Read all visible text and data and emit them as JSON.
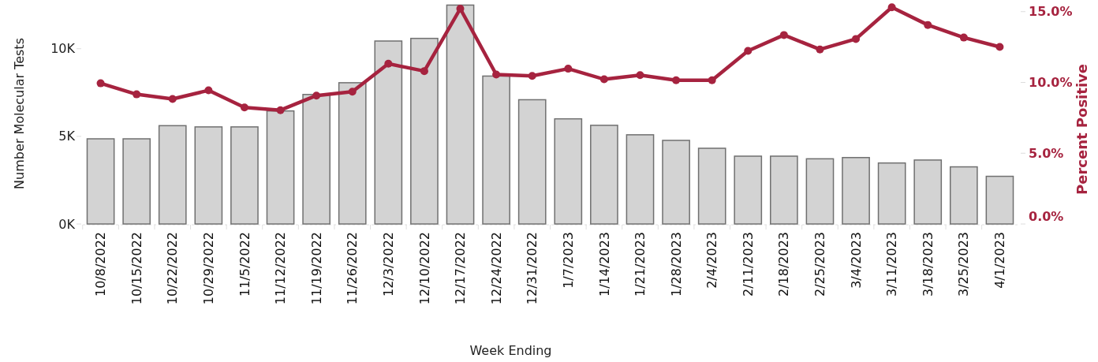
{
  "chart_data": {
    "type": "bar",
    "xlabel": "Week Ending",
    "ylabel": "Number Molecular Tests",
    "y2label": "Percent Positive",
    "categories": [
      "10/8/2022",
      "10/15/2022",
      "10/22/2022",
      "10/29/2022",
      "11/5/2022",
      "11/12/2022",
      "11/19/2022",
      "11/26/2022",
      "12/3/2022",
      "12/10/2022",
      "12/17/2022",
      "12/24/2022",
      "12/31/2022",
      "1/7/2023",
      "1/14/2023",
      "1/21/2023",
      "1/28/2023",
      "2/4/2023",
      "2/11/2023",
      "2/18/2023",
      "2/25/2023",
      "3/4/2023",
      "3/11/2023",
      "3/18/2023",
      "3/25/2023",
      "4/1/2023"
    ],
    "series": [
      {
        "color": "#d3d3d3",
        "values": [
          4860,
          4860,
          5610,
          5540,
          5540,
          6450,
          7390,
          8060,
          10440,
          10590,
          12490,
          8440,
          7090,
          6000,
          5630,
          5090,
          4770,
          4320,
          3870,
          3870,
          3720,
          3790,
          3480,
          3650,
          3260,
          2720
        ]
      },
      {
        "type": "line",
        "axis": "y2",
        "color": "#a6233f",
        "values": [
          9.94,
          9.16,
          8.83,
          9.44,
          8.23,
          8.04,
          9.07,
          9.35,
          11.32,
          10.8,
          15.21,
          10.56,
          10.46,
          10.97,
          10.22,
          10.52,
          10.15,
          10.15,
          12.23,
          13.35,
          12.33,
          13.07,
          15.31,
          14.06,
          13.17,
          12.51
        ]
      }
    ],
    "ylim": [
      0,
      12600
    ],
    "yticks": [
      {
        "value": 0,
        "label": "0K"
      },
      {
        "value": 5000,
        "label": "5K"
      },
      {
        "value": 10000,
        "label": "10K"
      }
    ],
    "y2lim": [
      0,
      15.6
    ],
    "y2ticks": [
      {
        "value": 0,
        "label": "0.0%"
      },
      {
        "value": 5,
        "label": "5.0%"
      },
      {
        "value": 10,
        "label": "10.0%"
      },
      {
        "value": 15,
        "label": "15.0%"
      }
    ],
    "grid": false,
    "marker": "circle",
    "line_style": "solid"
  }
}
